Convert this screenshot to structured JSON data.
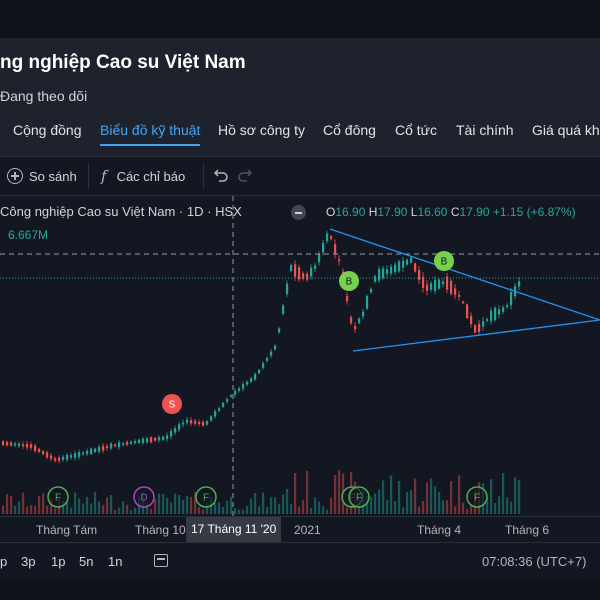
{
  "header": {
    "title": "ng nghiệp Cao su Việt Nam",
    "follow_label": "Đang theo dõi",
    "tabs": [
      {
        "label": "Cộng đồng",
        "active": false
      },
      {
        "label": "Biểu đồ kỹ thuật",
        "active": true
      },
      {
        "label": "Hồ sơ công ty",
        "active": false
      },
      {
        "label": "Cổ đông",
        "active": false
      },
      {
        "label": "Cổ tức",
        "active": false
      },
      {
        "label": "Tài chính",
        "active": false
      },
      {
        "label": "Giá quá khứ",
        "active": false
      }
    ]
  },
  "toolbar": {
    "compare_label": "So sánh",
    "indicators_label": "Các chỉ báo",
    "undo_icon": "undo-icon",
    "redo_icon": "redo-icon"
  },
  "legend": {
    "symbol": "Công nghiệp Cao su Việt Nam · 1D · HSX",
    "open_label": "O",
    "open": "16.90",
    "high_label": "H",
    "high": "17.90",
    "low_label": "L",
    "low": "16.60",
    "close_label": "C",
    "close": "17.90",
    "change": "+1.15 (+6.87%)",
    "volume": "6.667M"
  },
  "colors": {
    "up": "#26a69a",
    "down": "#ef5350",
    "accent": "#42a5f5",
    "trendline": "#2196f3",
    "buy_marker": "#76d14b",
    "sell_marker": "#ef5350"
  },
  "markers": {
    "buy": "B",
    "sell": "S",
    "events": [
      "F",
      "D",
      "F",
      "F",
      "F",
      "F"
    ]
  },
  "time_axis": {
    "labels": [
      "Tháng Tám",
      "Tháng 10",
      "2021",
      "Tháng 4",
      "Tháng 6"
    ],
    "crosshair_label": "17 Tháng 11 '20"
  },
  "bottom": {
    "ranges": [
      "p",
      "3p",
      "1p",
      "5n",
      "1n"
    ],
    "clock": "07:08:36 (UTC+7)"
  }
}
